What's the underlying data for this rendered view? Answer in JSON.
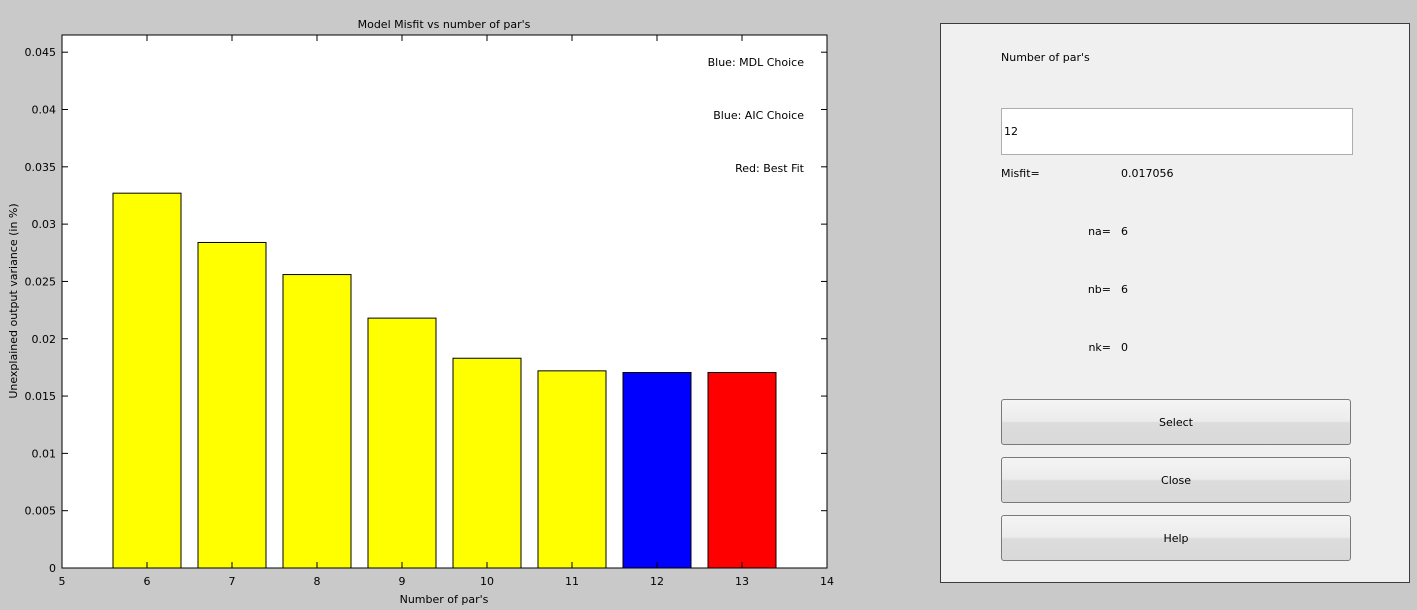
{
  "chart_data": {
    "type": "bar",
    "title": "Model Misfit vs number of par's",
    "xlabel": "Number of par's",
    "ylabel": "Unexplained output variance (in %)",
    "xlim": [
      5,
      14
    ],
    "ylim": [
      0,
      0.0465
    ],
    "x": [
      6,
      7,
      8,
      9,
      10,
      11,
      12,
      13
    ],
    "values": [
      0.0327,
      0.0284,
      0.0256,
      0.0218,
      0.0183,
      0.0172,
      0.017056,
      0.017056
    ],
    "bar_colors": [
      "#ffff00",
      "#ffff00",
      "#ffff00",
      "#ffff00",
      "#ffff00",
      "#ffff00",
      "#0000ff",
      "#ff0000"
    ],
    "xticks": [
      5,
      6,
      7,
      8,
      9,
      10,
      11,
      12,
      13,
      14
    ],
    "yticks": [
      0,
      0.005,
      0.01,
      0.015,
      0.02,
      0.025,
      0.03,
      0.035,
      0.04,
      0.045
    ],
    "ytick_labels": [
      "0",
      "0.005",
      "0.01",
      "0.015",
      "0.02",
      "0.025",
      "0.03",
      "0.035",
      "0.04",
      "0.045"
    ],
    "legend": [
      "Blue: MDL Choice",
      "Blue: AIC Choice",
      "Red: Best Fit"
    ],
    "legend_position": "top-right",
    "grid": false
  },
  "panel": {
    "number_label": "Number of par's",
    "number_value": "12",
    "misfit_label": "Misfit=",
    "misfit_value": "0.017056",
    "na_label": "na=",
    "na_value": "6",
    "nb_label": "nb=",
    "nb_value": "6",
    "nk_label": "nk=",
    "nk_value": "0",
    "select_label": "Select",
    "close_label": "Close",
    "help_label": "Help"
  },
  "colors": {
    "figure_background": "#c9c9c9",
    "panel_background": "#f0f0f0"
  }
}
